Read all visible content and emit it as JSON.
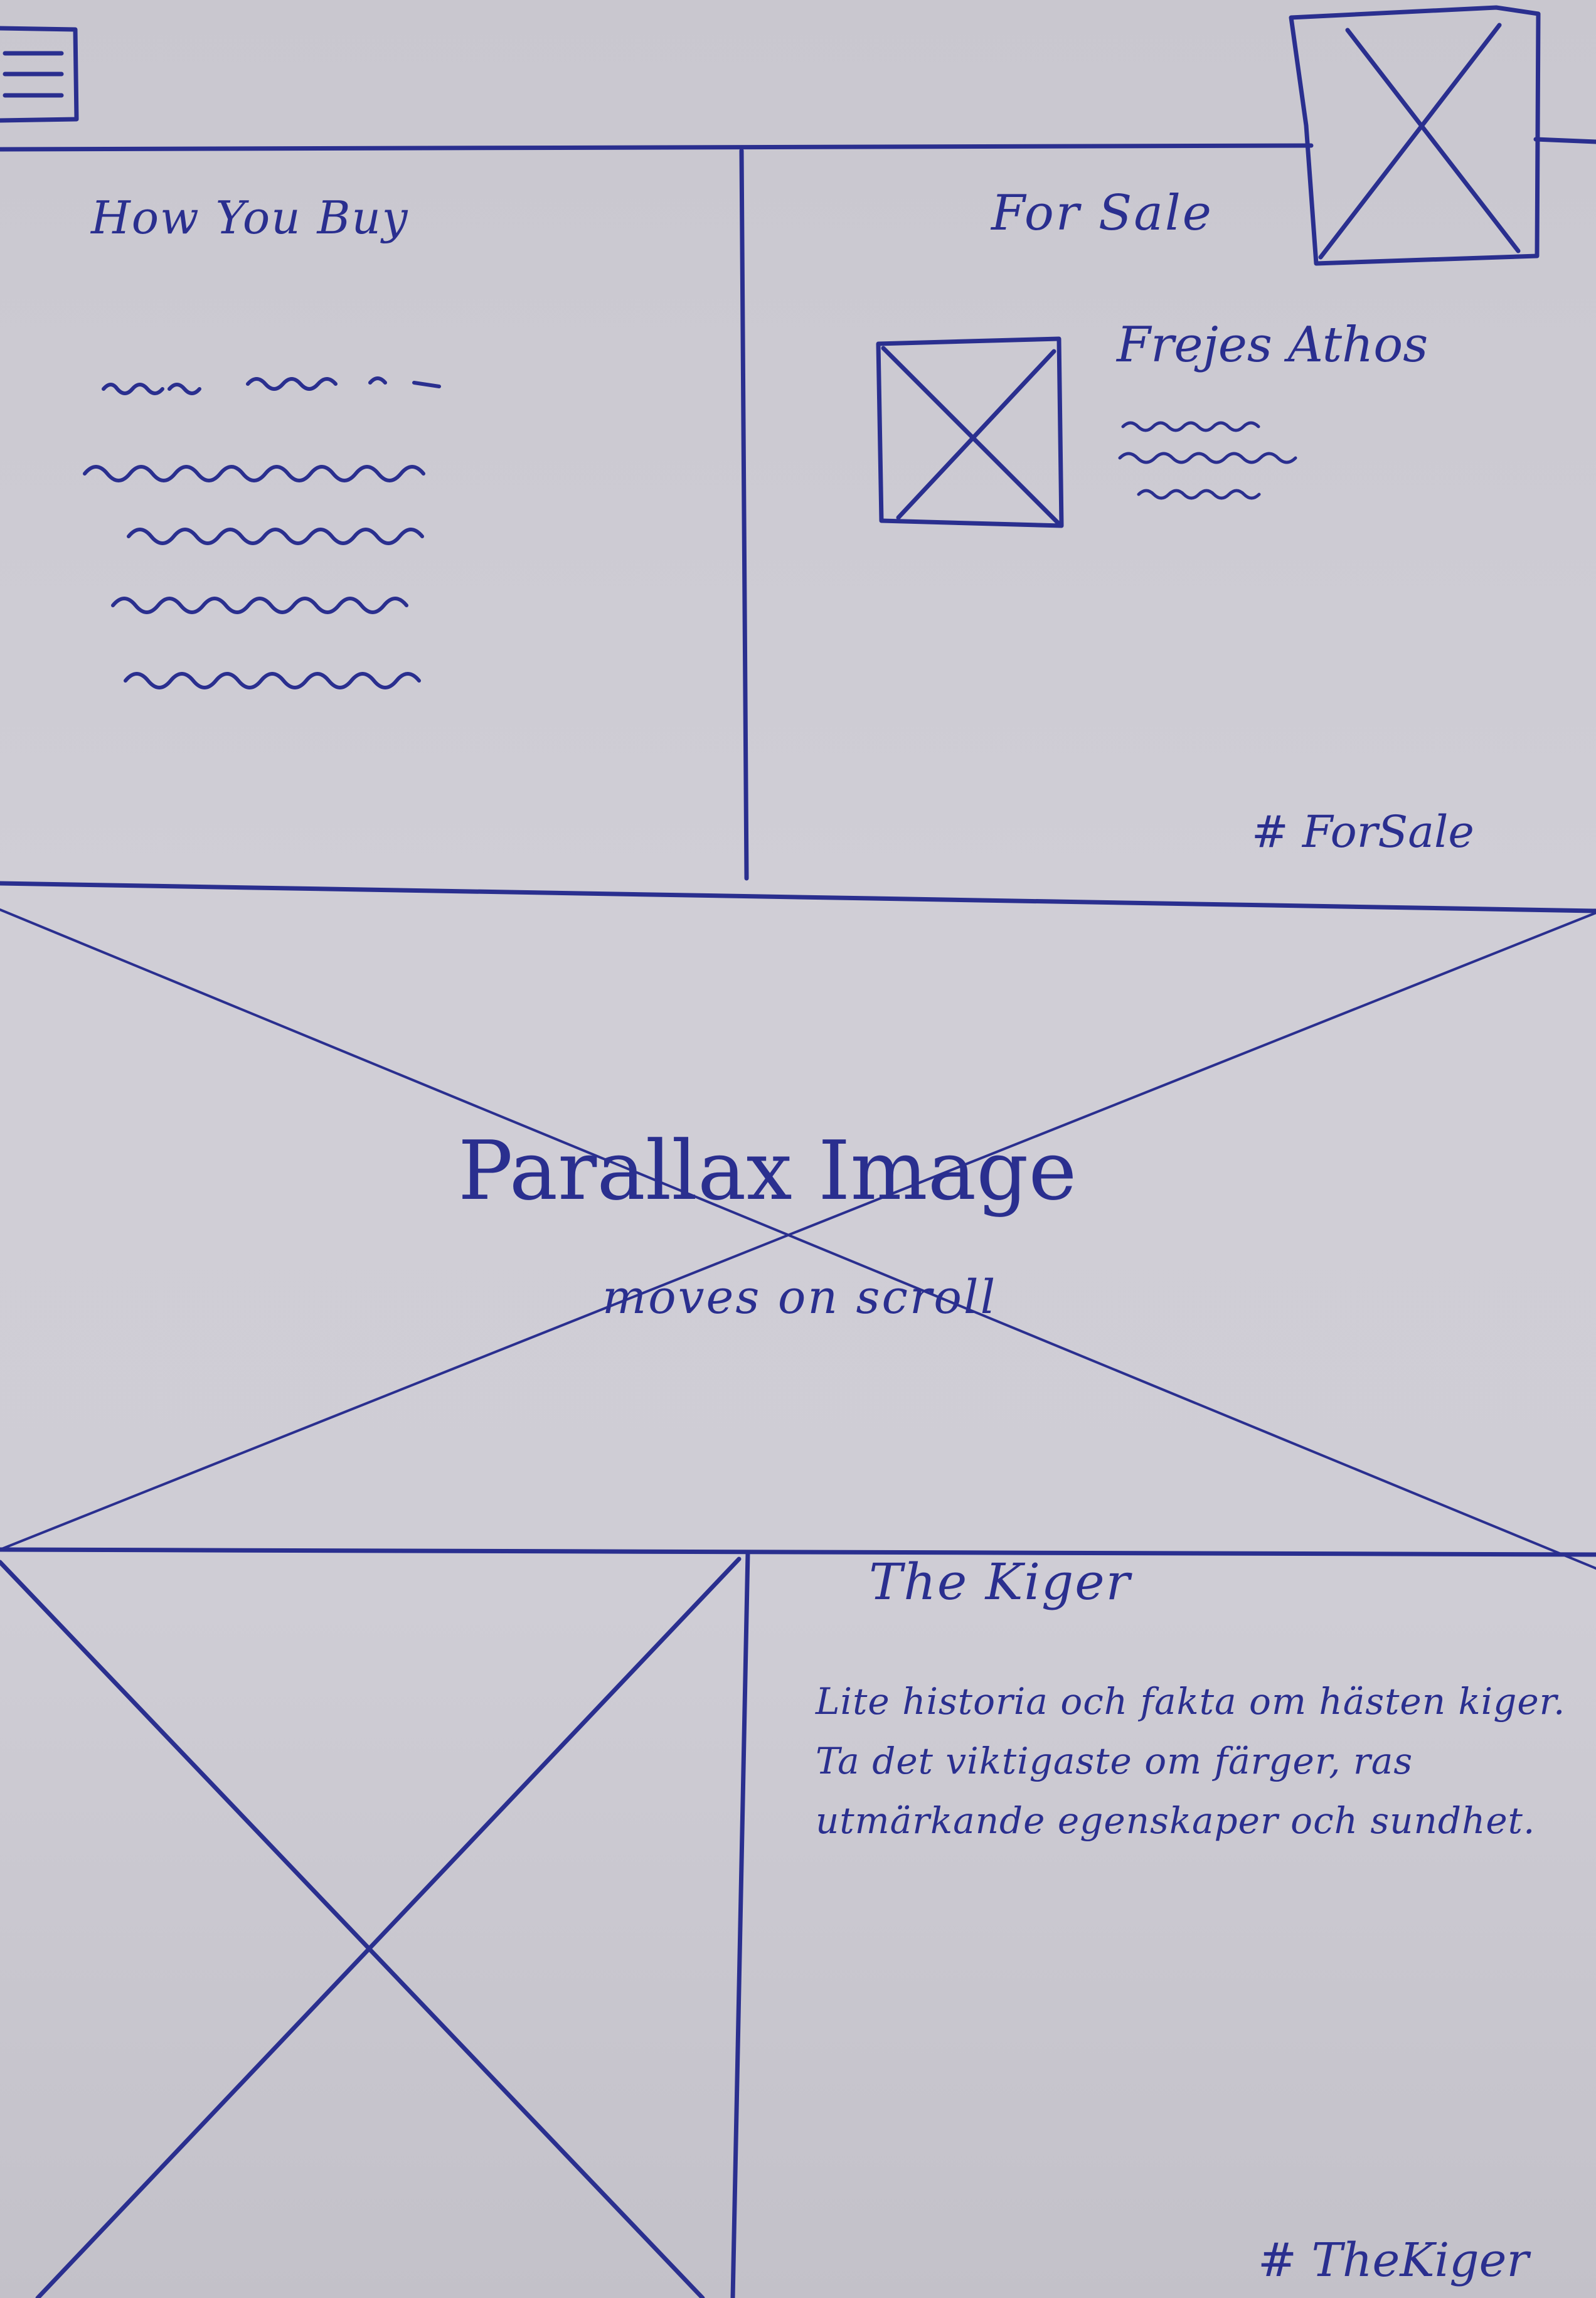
{
  "nav": {
    "menu_icon": "hamburger-icon",
    "logo_icon": "image-placeholder-icon"
  },
  "how_you_buy": {
    "heading": "How You Buy"
  },
  "for_sale": {
    "heading": "For Sale",
    "item": {
      "name": "Frejes Athos",
      "image_icon": "image-placeholder-icon"
    },
    "anchor": "# ForSale"
  },
  "parallax": {
    "title": "Parallax Image",
    "subtitle": "moves on scroll",
    "image_icon": "image-placeholder-icon"
  },
  "kiger": {
    "heading": "The Kiger",
    "description": "Lite historia och fakta om hästen kiger. Ta det viktigaste om färger, ras utmärkande egenskaper och sundhet.",
    "image_icon": "image-placeholder-icon",
    "anchor": "# TheKiger"
  },
  "colors": {
    "ink": "#2a2f8f",
    "paper": "#cfcdd5"
  }
}
